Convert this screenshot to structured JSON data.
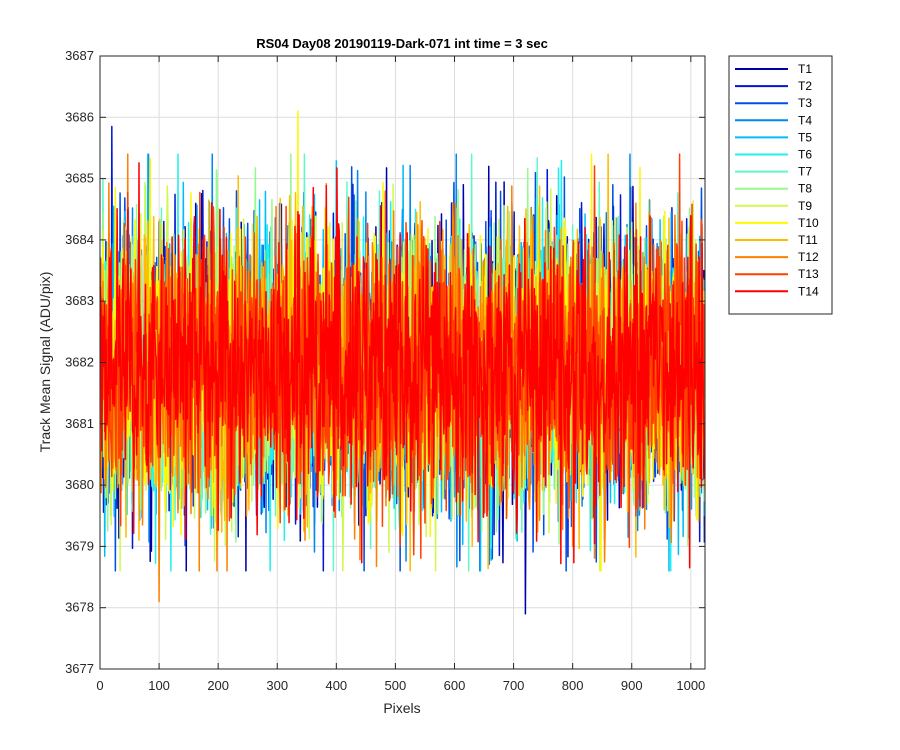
{
  "chart_data": {
    "type": "line",
    "title": "RS04 Day08 20190119-Dark-071 int time = 3 sec",
    "xlabel": "Pixels",
    "ylabel": "Track Mean Signal (ADU/pix)",
    "xlim": [
      0,
      1024
    ],
    "ylim": [
      3677,
      3687
    ],
    "xticks": [
      "0",
      "100",
      "200",
      "300",
      "400",
      "500",
      "600",
      "700",
      "800",
      "900",
      "1000"
    ],
    "yticks": [
      "3677",
      "3678",
      "3679",
      "3680",
      "3681",
      "3682",
      "3683",
      "3684",
      "3685",
      "3686",
      "3687"
    ],
    "grid": true,
    "legend_position": "outside-top-right",
    "n_points_per_series": 1024,
    "series_mean": 3681.9,
    "series_noise_sd": 1.1,
    "series": [
      {
        "name": "T1",
        "color": "#0000a8"
      },
      {
        "name": "T2",
        "color": "#0018d0"
      },
      {
        "name": "T3",
        "color": "#0050e8"
      },
      {
        "name": "T4",
        "color": "#0088f0"
      },
      {
        "name": "T5",
        "color": "#00bcf8"
      },
      {
        "name": "T6",
        "color": "#20f0f0"
      },
      {
        "name": "T7",
        "color": "#60f8c8"
      },
      {
        "name": "T8",
        "color": "#98f890"
      },
      {
        "name": "T9",
        "color": "#d0f850"
      },
      {
        "name": "T10",
        "color": "#fff800"
      },
      {
        "name": "T11",
        "color": "#ffbc00"
      },
      {
        "name": "T12",
        "color": "#ff8000"
      },
      {
        "name": "T13",
        "color": "#ff4000"
      },
      {
        "name": "T14",
        "color": "#ff0000"
      }
    ],
    "annotated_extremes": [
      {
        "series": "T2",
        "x": 20,
        "y": 3685.85
      },
      {
        "series": "T10",
        "x": 335,
        "y": 3686.1
      },
      {
        "series": "T1",
        "x": 720,
        "y": 3677.9
      },
      {
        "series": "T12",
        "x": 100,
        "y": 3678.1
      }
    ]
  }
}
